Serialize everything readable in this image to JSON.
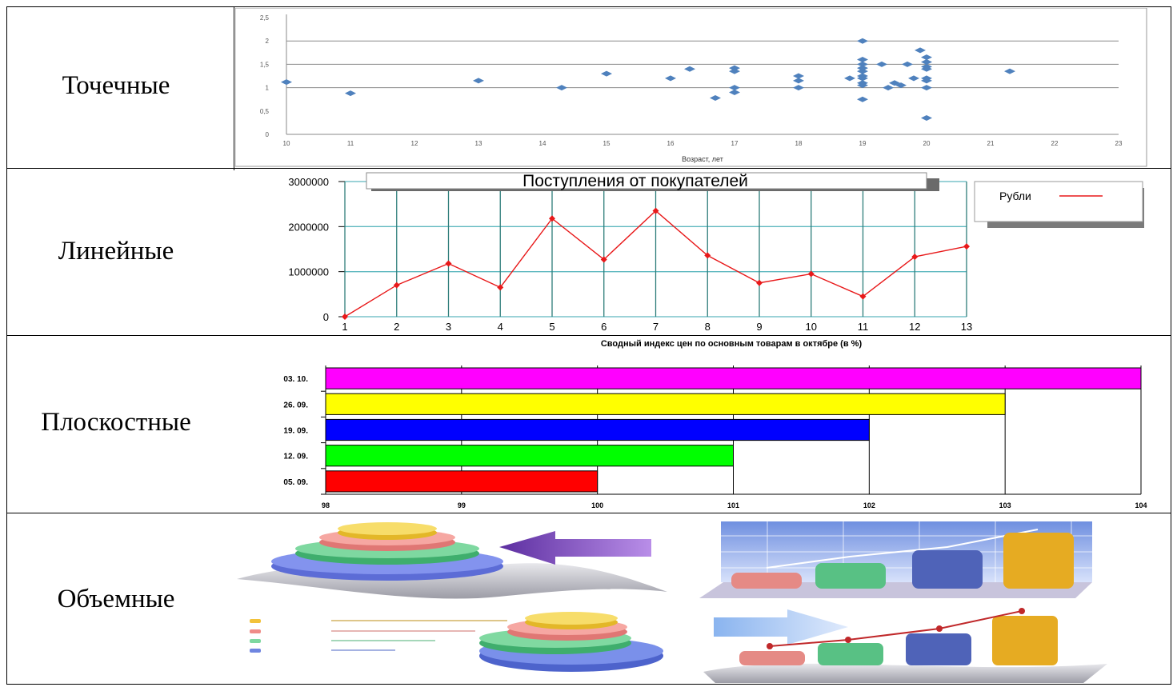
{
  "rows": [
    {
      "label": "Точечные"
    },
    {
      "label": "Линейные"
    },
    {
      "label": "Плоскостные"
    },
    {
      "label": "Объемные"
    }
  ],
  "chart_data": [
    {
      "type": "scatter",
      "xlabel": "Возраст, лет",
      "ylabel": "",
      "xlim": [
        10,
        23
      ],
      "ylim": [
        0,
        2.5
      ],
      "x_ticks": [
        "10",
        "11",
        "12",
        "13",
        "14",
        "15",
        "16",
        "17",
        "18",
        "19",
        "20",
        "21",
        "22",
        "23"
      ],
      "y_ticks": [
        "0",
        "0,5",
        "1",
        "1,5",
        "2",
        "2,5"
      ],
      "point_color": "#4f81bd",
      "points": [
        [
          10,
          1.12
        ],
        [
          11,
          0.88
        ],
        [
          13,
          1.15
        ],
        [
          14.3,
          1.0
        ],
        [
          15,
          1.3
        ],
        [
          16,
          1.2
        ],
        [
          16.3,
          1.4
        ],
        [
          16.7,
          0.78
        ],
        [
          17,
          1.42
        ],
        [
          17,
          1.35
        ],
        [
          17,
          1.0
        ],
        [
          17,
          0.9
        ],
        [
          18,
          1.25
        ],
        [
          18,
          1.15
        ],
        [
          18,
          1.0
        ],
        [
          19,
          2.0
        ],
        [
          19,
          1.6
        ],
        [
          19,
          1.5
        ],
        [
          19,
          1.42
        ],
        [
          19,
          1.35
        ],
        [
          19,
          1.25
        ],
        [
          19,
          1.2
        ],
        [
          19,
          1.1
        ],
        [
          19,
          1.05
        ],
        [
          19,
          0.75
        ],
        [
          18.8,
          1.2
        ],
        [
          19.3,
          1.5
        ],
        [
          19.4,
          1.0
        ],
        [
          19.5,
          1.1
        ],
        [
          19.6,
          1.05
        ],
        [
          19.7,
          1.5
        ],
        [
          19.8,
          1.2
        ],
        [
          19.9,
          1.8
        ],
        [
          20,
          1.65
        ],
        [
          20,
          1.55
        ],
        [
          20,
          1.45
        ],
        [
          20,
          1.4
        ],
        [
          20,
          1.2
        ],
        [
          20,
          1.15
        ],
        [
          20,
          1.0
        ],
        [
          20,
          0.35
        ],
        [
          21.3,
          1.35
        ]
      ]
    },
    {
      "type": "line",
      "title": "Поступления от покупателей",
      "series": [
        {
          "name": "Рубли",
          "color": "#e8191a",
          "values": [
            0,
            700000,
            1180000,
            650000,
            2180000,
            1270000,
            2350000,
            1360000,
            750000,
            950000,
            450000,
            1330000,
            1560000
          ]
        }
      ],
      "categories": [
        "1",
        "2",
        "3",
        "4",
        "5",
        "6",
        "7",
        "8",
        "9",
        "10",
        "11",
        "12",
        "13"
      ],
      "ylim": [
        0,
        3000000
      ],
      "y_ticks": [
        "0",
        "1000000",
        "2000000",
        "3000000"
      ]
    },
    {
      "type": "bar",
      "orientation": "horizontal",
      "title": "Сводный индекс цен по основным товарам в октябре (в %)",
      "categories": [
        "03. 10.",
        "26. 09.",
        "19. 09.",
        "12. 09.",
        "05. 09."
      ],
      "values": [
        104,
        103,
        102,
        101,
        100
      ],
      "colors": [
        "#ff00ff",
        "#ffff00",
        "#0000ff",
        "#00ff00",
        "#ff0000"
      ],
      "xlim": [
        98,
        104
      ],
      "x_ticks": [
        "98",
        "99",
        "100",
        "101",
        "102",
        "103",
        "104"
      ]
    }
  ]
}
